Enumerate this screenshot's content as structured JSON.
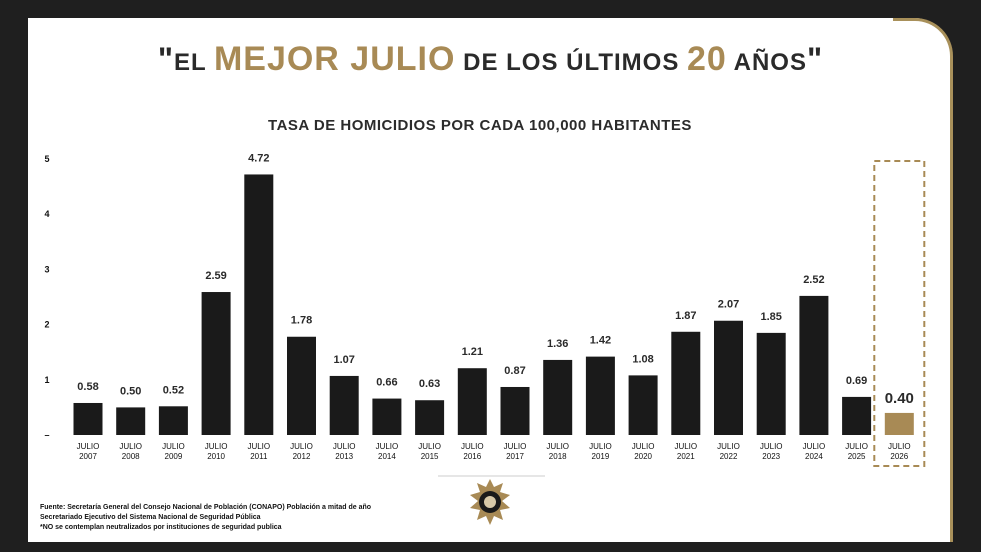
{
  "headline": {
    "open_quote": "\"",
    "part1": "EL ",
    "highlight1": "MEJOR JULIO",
    "part2": " DE LOS ÚLTIMOS ",
    "highlight2": "20",
    "part3": " AÑOS",
    "close_quote": "\""
  },
  "colors": {
    "bar": "#1a1a1a",
    "highlight_bar": "#a88a55",
    "gold": "#a88a55",
    "background": "#1f1f1f",
    "panel": "#ffffff"
  },
  "chart_data": {
    "type": "bar",
    "title": "TASA DE HOMICIDIOS POR CADA 100,000 HABITANTES",
    "categories": [
      "JULIO 2007",
      "JULIO 2008",
      "JULIO 2009",
      "JULIO 2010",
      "JULIO 2011",
      "JULIO 2012",
      "JULIO 2013",
      "JULIO 2014",
      "JULIO 2015",
      "JULIO 2016",
      "JULIO 2017",
      "JULIO 2018",
      "JULIO 2019",
      "JULIO 2020",
      "JULIO 2021",
      "JULIO 2022",
      "JULIO 2023",
      "JULIO 2024",
      "JULIO 2025",
      "JULIO 2026"
    ],
    "values": [
      0.58,
      0.5,
      0.52,
      2.59,
      4.72,
      1.78,
      1.07,
      0.66,
      0.63,
      1.21,
      0.87,
      1.36,
      1.42,
      1.08,
      1.87,
      2.07,
      1.85,
      2.52,
      0.69,
      0.4
    ],
    "labels": [
      "0.58",
      "0.50",
      "0.52",
      "2.59",
      "4.72",
      "1.78",
      "1.07",
      "0.66",
      "0.63",
      "1.21",
      "0.87",
      "1.36",
      "1.42",
      "1.08",
      "1.87",
      "2.07",
      "1.85",
      "2.52",
      "0.69",
      "0.40"
    ],
    "highlight_index": 19,
    "yticks": [
      "–",
      "1",
      "2",
      "3",
      "4",
      "5"
    ],
    "ylim": [
      0,
      5
    ],
    "grid": false,
    "legend": "none"
  },
  "footnote": {
    "line1": "Fuente: Secretaría General del Consejo Nacional de Población (CONAPO) Población a mitad de año",
    "line2": "Secretariado Ejecutivo del Sistema Nacional de Seguridad Pública",
    "line3": "*NO se contemplan neutralizados por instituciones de seguridad publica"
  }
}
